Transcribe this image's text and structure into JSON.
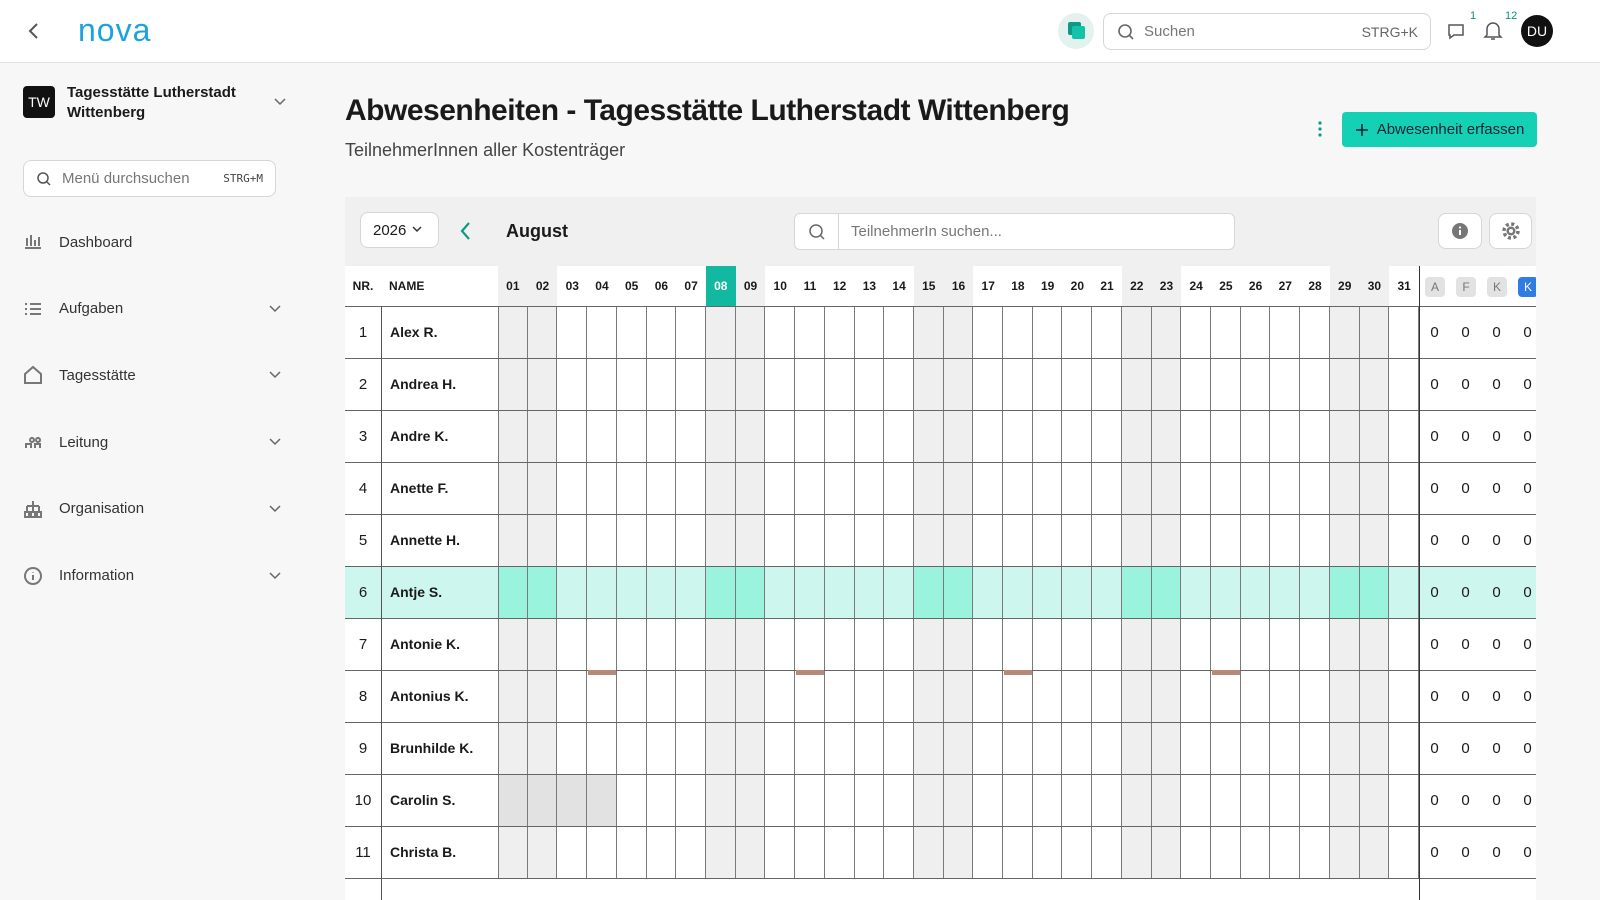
{
  "header": {
    "logo": "nova",
    "search_placeholder": "Suchen",
    "search_shortcut": "STRG+K",
    "chat_badge": "1",
    "notifications_badge": "12",
    "avatar": "DU"
  },
  "sidebar": {
    "org_initials": "TW",
    "org_name": "Tagesstätte Lutherstadt Wittenberg",
    "menu_search_placeholder": "Menü durchsuchen",
    "menu_search_shortcut": "STRG+M",
    "items": [
      "Dashboard",
      "Aufgaben",
      "Tagesstätte",
      "Leitung",
      "Organisation",
      "Information"
    ]
  },
  "page": {
    "title": "Abwesenheiten - Tagesstätte Lutherstadt Wittenberg",
    "subtitle": "TeilnehmerInnen aller Kostenträger",
    "add_button": "Abwesenheit erfassen"
  },
  "calendar": {
    "year": "2026",
    "month": "August",
    "participant_search_placeholder": "TeilnehmerIn suchen...",
    "columns": {
      "nr": "NR.",
      "name": "NAME"
    },
    "days": [
      "01",
      "02",
      "03",
      "04",
      "05",
      "06",
      "07",
      "08",
      "09",
      "10",
      "11",
      "12",
      "13",
      "14",
      "15",
      "16",
      "17",
      "18",
      "19",
      "20",
      "21",
      "22",
      "23",
      "24",
      "25",
      "26",
      "27",
      "28",
      "29",
      "30",
      "31"
    ],
    "summary_columns": [
      "A",
      "F",
      "K",
      "K"
    ],
    "rows": [
      {
        "nr": 1,
        "name": "Alex R.",
        "counts": [
          0,
          0,
          0,
          0
        ]
      },
      {
        "nr": 2,
        "name": "Andrea H.",
        "counts": [
          0,
          0,
          0,
          0
        ]
      },
      {
        "nr": 3,
        "name": "Andre K.",
        "counts": [
          0,
          0,
          0,
          0
        ]
      },
      {
        "nr": 4,
        "name": "Anette F.",
        "counts": [
          0,
          0,
          0,
          0
        ]
      },
      {
        "nr": 5,
        "name": "Annette H.",
        "counts": [
          0,
          0,
          0,
          0
        ]
      },
      {
        "nr": 6,
        "name": "Antje S.",
        "counts": [
          0,
          0,
          0,
          0
        ]
      },
      {
        "nr": 7,
        "name": "Antonie K.",
        "counts": [
          0,
          0,
          0,
          0
        ]
      },
      {
        "nr": 8,
        "name": "Antonius K.",
        "counts": [
          0,
          0,
          0,
          0
        ]
      },
      {
        "nr": 9,
        "name": "Brunhilde K.",
        "counts": [
          0,
          0,
          0,
          0
        ]
      },
      {
        "nr": 10,
        "name": "Carolin S.",
        "counts": [
          0,
          0,
          0,
          0
        ]
      },
      {
        "nr": 11,
        "name": "Christa B.",
        "counts": [
          0,
          0,
          0,
          0
        ]
      }
    ]
  }
}
